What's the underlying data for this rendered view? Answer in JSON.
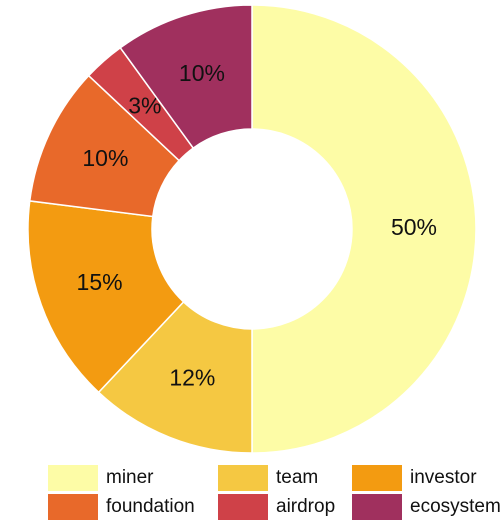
{
  "chart_data": {
    "type": "donut",
    "categories": [
      "miner",
      "team",
      "investor",
      "foundation",
      "airdrop",
      "ecosystem"
    ],
    "values": [
      50,
      12,
      15,
      10,
      3,
      10
    ],
    "value_labels": [
      "50%",
      "12%",
      "15%",
      "10%",
      "3%",
      "10%"
    ],
    "colors": [
      "#fdfca6",
      "#f5c842",
      "#f39b11",
      "#e8692a",
      "#cf4148",
      "#a0305e"
    ]
  }
}
